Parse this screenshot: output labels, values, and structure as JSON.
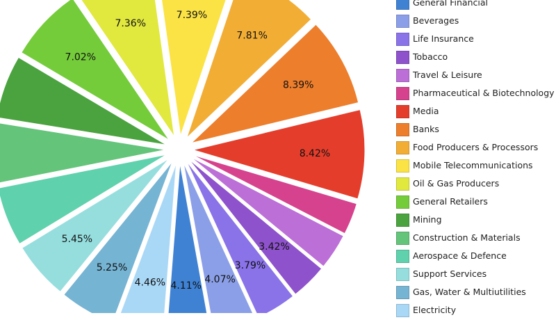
{
  "chart_data": {
    "type": "pie",
    "title": "",
    "legend_position": "right",
    "slices": [
      {
        "name": "General Financial",
        "value": 4.11,
        "label": "4.11%",
        "color": "#3f82d4"
      },
      {
        "name": "Beverages",
        "value": 4.07,
        "label": "4.07%",
        "color": "#8b9fe8"
      },
      {
        "name": "Life Insurance",
        "value": 3.79,
        "label": "3.79%",
        "color": "#8a72e8"
      },
      {
        "name": "Tobacco",
        "value": 3.42,
        "label": "3.42%",
        "color": "#8e52cc"
      },
      {
        "name": "Travel & Leisure",
        "value": 3.4,
        "label": "",
        "color": "#bb6fd7"
      },
      {
        "name": "Pharmaceutical & Biotechnology",
        "value": 3.0,
        "label": "",
        "color": "#d6428e"
      },
      {
        "name": "Media",
        "value": 8.42,
        "label": "8.42%",
        "color": "#e53d2b"
      },
      {
        "name": "Banks",
        "value": 8.39,
        "label": "8.39%",
        "color": "#ed7e2c"
      },
      {
        "name": "Food Producers & Processors",
        "value": 7.81,
        "label": "7.81%",
        "color": "#f2ad35"
      },
      {
        "name": "Mobile Telecommunications",
        "value": 7.39,
        "label": "7.39%",
        "color": "#fbe345"
      },
      {
        "name": "Oil & Gas Producers",
        "value": 7.36,
        "label": "7.36%",
        "color": "#e1e83e"
      },
      {
        "name": "General Retailers",
        "value": 7.02,
        "label": "7.02%",
        "color": "#74cc3a"
      },
      {
        "name": "Mining",
        "value": 6.0,
        "label": "",
        "color": "#4aa33e"
      },
      {
        "name": "Construction & Materials",
        "value": 5.7,
        "label": "",
        "color": "#63c47a"
      },
      {
        "name": "Aerospace & Defence",
        "value": 5.6,
        "label": "",
        "color": "#5fd1ad"
      },
      {
        "name": "Support Services",
        "value": 5.45,
        "label": "5.45%",
        "color": "#96dede"
      },
      {
        "name": "Gas, Water & Multiutilities",
        "value": 5.25,
        "label": "5.25%",
        "color": "#76b4d3"
      },
      {
        "name": "Electricity",
        "value": 4.46,
        "label": "4.46%",
        "color": "#a9d8f7"
      }
    ]
  }
}
